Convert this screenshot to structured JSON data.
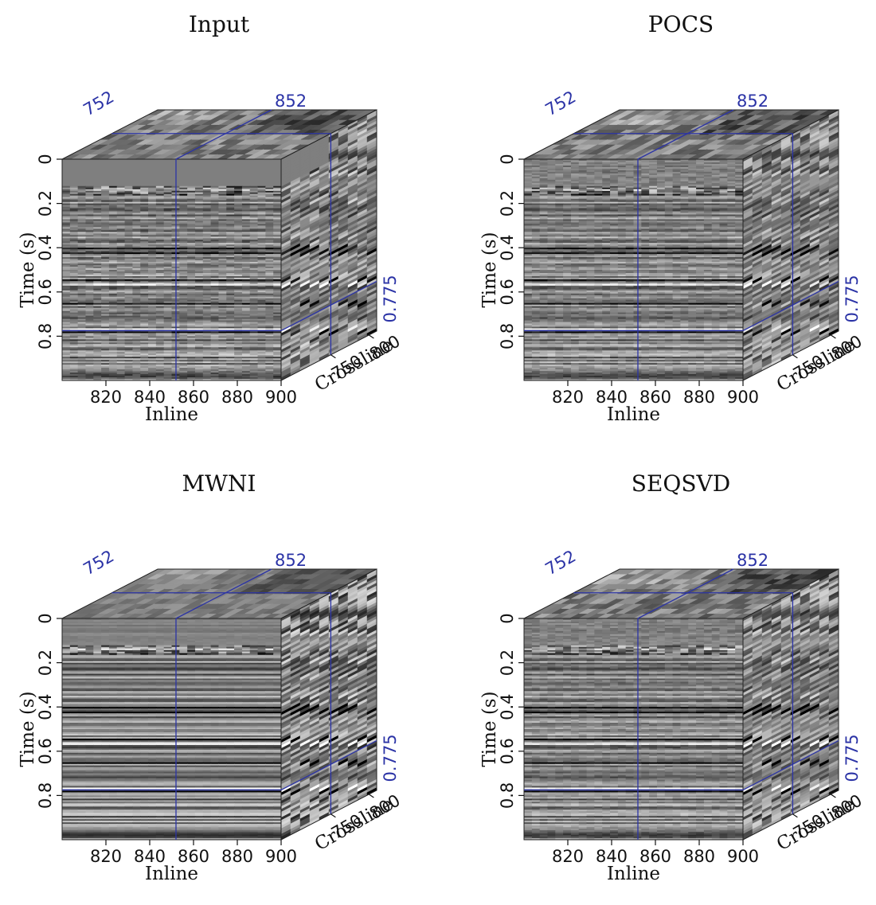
{
  "colors": {
    "background": "#ffffff",
    "marker_line": "#2b33a6",
    "seismic_mid_gray": "#7f7f7f",
    "text": "#111111"
  },
  "shared_axes": {
    "inline_label": "Inline",
    "inline_ticks": [
      "820",
      "840",
      "860",
      "880",
      "900"
    ],
    "crossline_label": "Crossline",
    "crossline_ticks": [
      "750",
      "800"
    ],
    "time_label": "Time (s)",
    "time_ticks": [
      "0",
      "0.2",
      "0.4",
      "0.6",
      "0.8"
    ]
  },
  "markers": {
    "inline": "852",
    "crossline": "752",
    "time": "0.775"
  },
  "panels": [
    {
      "title": "Input",
      "style": "input"
    },
    {
      "title": "POCS",
      "style": "pocs"
    },
    {
      "title": "MWNI",
      "style": "mwni"
    },
    {
      "title": "SEQSVD",
      "style": "seqsvd"
    }
  ]
}
